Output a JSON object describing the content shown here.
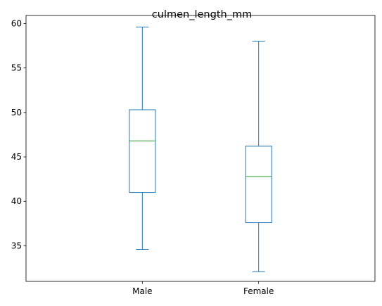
{
  "chart_data": {
    "type": "box",
    "title": "culmen_length_mm",
    "xlabel": "",
    "ylabel": "",
    "categories": [
      "Male",
      "Female"
    ],
    "ylim": [
      31.0,
      60.9
    ],
    "yticks": [
      35,
      40,
      45,
      50,
      55,
      60
    ],
    "grid": false,
    "box_color": "#1f77b4",
    "median_color": "#2ca02c",
    "boxes": [
      {
        "label": "Male",
        "whisker_low": 34.6,
        "q1": 41.0,
        "median": 46.8,
        "q3": 50.3,
        "whisker_high": 59.6
      },
      {
        "label": "Female",
        "whisker_low": 32.1,
        "q1": 37.6,
        "median": 42.8,
        "q3": 46.2,
        "whisker_high": 58.0
      }
    ]
  }
}
